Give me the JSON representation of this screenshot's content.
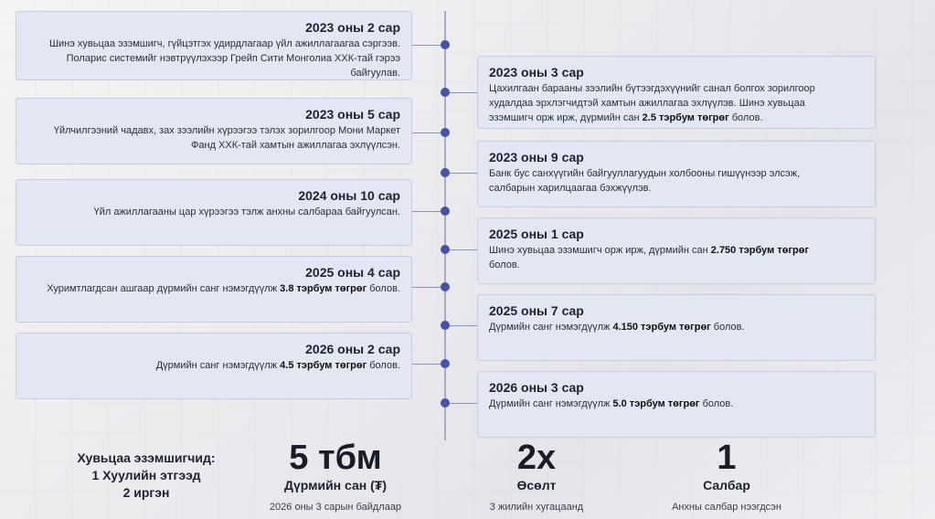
{
  "timeline": {
    "left": [
      {
        "title": "2023 оны 2 сар",
        "lines": [
          "Шинэ хувьцаа эзэмшигч, гүйцэтгэх удирдлагаар үйл ажиллагаагаа сэргээв.",
          "Поларис системийг нэвтрүүлэхээр Грейп Сити Монголиа ХХК-тай гэрээ",
          "байгуулав."
        ]
      },
      {
        "title": "2023 оны 5 сар",
        "lines": [
          "Үйлчилгээний чадавх, зах зээлийн хүрээгээ тэлэх зорилгоор Мони Маркет",
          "Фанд ХХК-тай хамтын ажиллагаа эхлүүлсэн."
        ]
      },
      {
        "title": "2024 оны 10 сар",
        "lines": [
          "Үйл ажиллагааны цар хүрээгээ тэлж анхны салбараа байгуулсан."
        ]
      },
      {
        "title": "2025 оны 4 сар",
        "pre": "Хуримтлагдсан ашгаар дүрмийн санг нэмэгдүүлж ",
        "bold": "3.8 тэрбум төгрөг",
        "post": " болов."
      },
      {
        "title": "2026 оны 2 сар",
        "pre": "Дүрмийн санг нэмэгдүүлж ",
        "bold": "4.5 тэрбум төгрөг",
        "post": " болов."
      }
    ],
    "right": [
      {
        "title": "2023 оны 3 сар",
        "line1": "Цахилгаан барааны зээлийн бүтээгдэхүүнийг санал болгох зорилгоор",
        "line2": "худалдаа эрхлэгчидтэй хамтын ажиллагаа эхлүүлэв. Шинэ хувьцаа",
        "pre": "эзэмшигч орж ирж, дүрмийн сан ",
        "bold": "2.5 тэрбум төгрөг",
        "post": " болов."
      },
      {
        "title": "2023 оны 9 сар",
        "line1": "Банк бус санхүүгийн байгууллагуудын холбооны гишүүнээр элсэж,",
        "line2": "салбарын харилцаагаа бэхжүүлэв."
      },
      {
        "title": "2025 оны 1 сар",
        "pre": "Шинэ хувьцаа эзэмшигч орж ирж, дүрмийн сан ",
        "bold": "2.750 тэрбум төгрөг",
        "post": "",
        "line2": "болов."
      },
      {
        "title": "2025 оны 7 сар",
        "pre": "Дүрмийн санг нэмэгдүүлж ",
        "bold": "4.150 тэрбум төгрөг",
        "post": " болов."
      },
      {
        "title": "2026 оны 3 сар",
        "pre": "Дүрмийн санг нэмэгдүүлж ",
        "bold": "5.0 тэрбум төгрөг",
        "post": " болов."
      }
    ]
  },
  "shareholders": {
    "title": "Хувьцаа эзэмшигчид:",
    "legal": "1 Хуулийн этгээд",
    "individuals": "2 иргэн"
  },
  "stats": [
    {
      "value": "5 тбм",
      "label": "Дүрмийн сан (₮)",
      "sub": "2026 оны 3 сарын байдлаар"
    },
    {
      "value": "2x",
      "label": "Өсөлт",
      "sub": "3 жилийн хугацаанд"
    },
    {
      "value": "1",
      "label": "Салбар",
      "sub": "Анхны салбар нээгдсэн"
    }
  ]
}
